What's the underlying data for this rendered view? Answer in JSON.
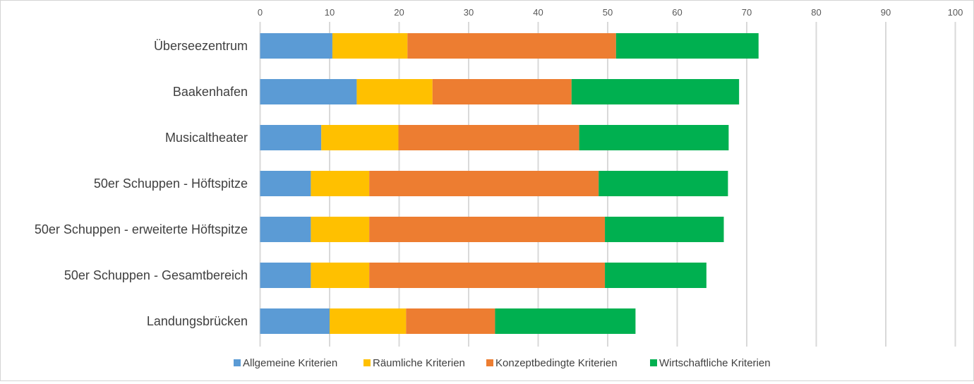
{
  "chart_data": {
    "type": "bar",
    "orientation": "horizontal",
    "stacked": true,
    "title": "",
    "xlabel": "",
    "ylabel": "",
    "xlim": [
      0,
      100
    ],
    "x_ticks": [
      0,
      10,
      20,
      30,
      40,
      50,
      60,
      70,
      80,
      90,
      100
    ],
    "grid": true,
    "legend_position": "bottom",
    "categories": [
      "Überseezentrum",
      "Baakenhafen",
      "Musicaltheater",
      "50er Schuppen - Höftspitze",
      "50er Schuppen - erweiterte Höftspitze",
      "50er Schuppen - Gesamtbereich",
      "Landungsbrücken"
    ],
    "series": [
      {
        "name": "Allgemeine Kriterien",
        "color": "#5B9BD5",
        "values": [
          10.4,
          13.9,
          8.8,
          7.3,
          7.3,
          7.3,
          10.0
        ]
      },
      {
        "name": "Räumliche Kriterien",
        "color": "#FFC000",
        "values": [
          10.8,
          10.9,
          11.1,
          8.4,
          8.4,
          8.4,
          11.0
        ]
      },
      {
        "name": "Konzeptbedingte Kriterien",
        "color": "#ED7D31",
        "values": [
          30.0,
          20.0,
          26.0,
          33.0,
          33.9,
          33.9,
          12.8
        ]
      },
      {
        "name": "Wirtschaftliche Kriterien",
        "color": "#00B050",
        "values": [
          20.5,
          24.1,
          21.5,
          18.6,
          17.1,
          14.6,
          20.2
        ]
      }
    ]
  }
}
